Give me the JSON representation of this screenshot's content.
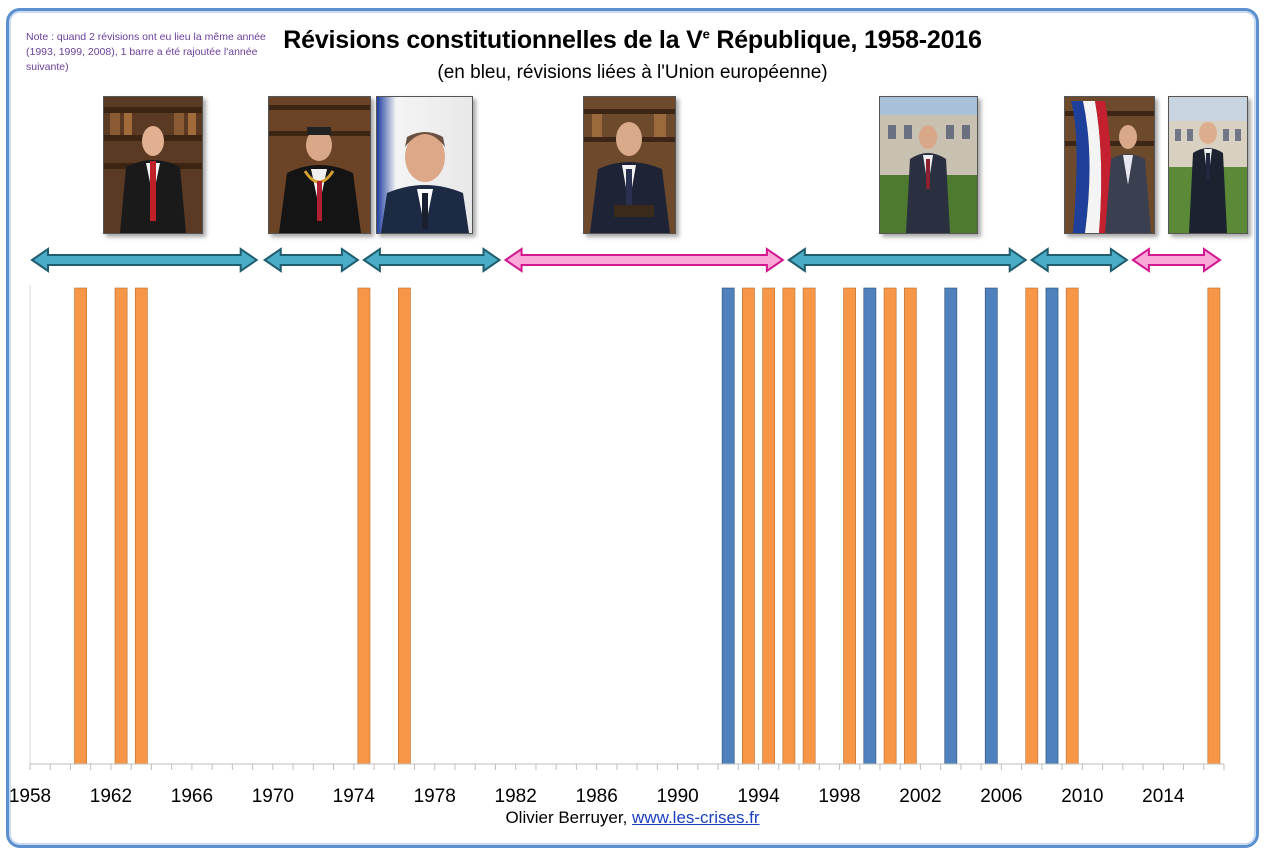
{
  "colors": {
    "other": "#f79646",
    "eu": "#4f81bd",
    "gaullist_arrow": "#4aacc6",
    "left_arrow": "#f9a8d8",
    "arrow_edge_teal": "#1f5d6f",
    "arrow_edge_pink": "#d0178f",
    "frame": "#5b8fd0"
  },
  "header": {
    "title_main": "Révisions constitutionnelles de la V",
    "title_sup": "e",
    "title_tail": " République, 1958-2016",
    "subtitle": "(en bleu, révisions liées à l'Union européenne)",
    "note": "Note : quand 2 révisions ont eu lieu la même année (1993, 1999, 2008), 1 barre a été rajoutée l'année suivante)"
  },
  "footer": {
    "author": "Olivier Berruyer,",
    "link": "www.les-crises.fr"
  },
  "presidents": [
    {
      "portrait": "portrait-de-gaulle",
      "start": 1958.0,
      "end": 1969.3,
      "side": "right-wing"
    },
    {
      "portrait": "portrait-pompidou",
      "start": 1969.5,
      "end": 1974.3,
      "side": "right-wing"
    },
    {
      "portrait": "portrait-giscard",
      "start": 1974.4,
      "end": 1981.3,
      "side": "right-wing"
    },
    {
      "portrait": "portrait-mitterrand",
      "start": 1981.4,
      "end": 1995.3,
      "side": "left-wing"
    },
    {
      "portrait": "portrait-chirac",
      "start": 1995.4,
      "end": 2007.3,
      "side": "right-wing"
    },
    {
      "portrait": "portrait-sarkozy",
      "start": 2007.4,
      "end": 2012.3,
      "side": "right-wing"
    },
    {
      "portrait": "portrait-hollande",
      "start": 2012.4,
      "end": 2016.9,
      "side": "left-wing"
    }
  ],
  "chart_data": {
    "type": "bar",
    "xlim": [
      1958,
      2016
    ],
    "ylim": [
      0,
      1
    ],
    "x_ticks": [
      1958,
      1962,
      1966,
      1970,
      1974,
      1978,
      1982,
      1986,
      1990,
      1994,
      1998,
      2002,
      2006,
      2010,
      2014
    ],
    "bars": [
      {
        "year": 1960,
        "eu": false
      },
      {
        "year": 1962,
        "eu": false
      },
      {
        "year": 1963,
        "eu": false
      },
      {
        "year": 1974,
        "eu": false
      },
      {
        "year": 1976,
        "eu": false
      },
      {
        "year": 1992,
        "eu": true
      },
      {
        "year": 1993,
        "eu": false
      },
      {
        "year": 1994,
        "eu": false
      },
      {
        "year": 1995,
        "eu": false
      },
      {
        "year": 1996,
        "eu": false
      },
      {
        "year": 1998,
        "eu": false
      },
      {
        "year": 1999,
        "eu": true
      },
      {
        "year": 2000,
        "eu": false
      },
      {
        "year": 2001,
        "eu": false
      },
      {
        "year": 2003,
        "eu": true
      },
      {
        "year": 2005,
        "eu": true
      },
      {
        "year": 2007,
        "eu": false
      },
      {
        "year": 2008,
        "eu": true
      },
      {
        "year": 2009,
        "eu": false
      },
      {
        "year": 2016,
        "eu": false
      }
    ]
  }
}
